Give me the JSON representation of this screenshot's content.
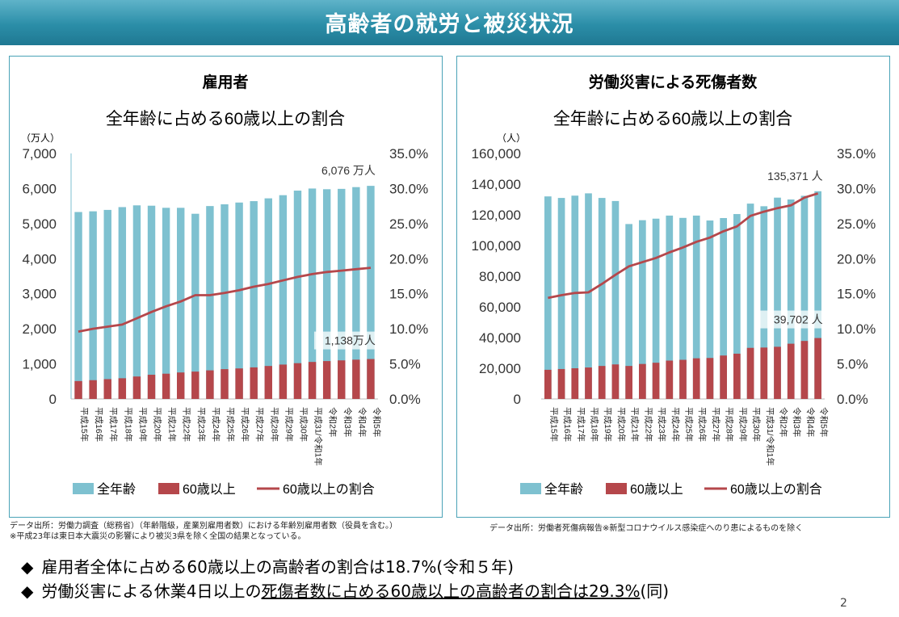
{
  "banner": {
    "title": "高齢者の就労と被災状況"
  },
  "chart_data": [
    {
      "type": "bar+line",
      "title": "雇用者",
      "subtitle": "全年齢に占める60歳以上の割合",
      "y_unit": "（万人）",
      "ylim": [
        0,
        7000
      ],
      "y_ticks": [
        "0",
        "1,000",
        "2,000",
        "3,000",
        "4,000",
        "5,000",
        "6,000",
        "7,000"
      ],
      "y2lim": [
        0,
        35
      ],
      "y2_ticks": [
        "0.0%",
        "5.0%",
        "10.0%",
        "15.0%",
        "20.0%",
        "25.0%",
        "30.0%",
        "35.0%"
      ],
      "categories": [
        "平成15年",
        "平成16年",
        "平成17年",
        "平成18年",
        "平成19年",
        "平成20年",
        "平成21年",
        "平成22年",
        "平成23年",
        "平成24年",
        "平成25年",
        "平成26年",
        "平成27年",
        "平成28年",
        "平成29年",
        "平成30年",
        "平成31/令和1年",
        "令和2年",
        "令和3年",
        "令和4年",
        "令和5年"
      ],
      "series": [
        {
          "name": "全年齢",
          "type": "bar",
          "color": "#7ec1d0",
          "values": [
            5330,
            5350,
            5390,
            5470,
            5520,
            5510,
            5450,
            5450,
            5280,
            5500,
            5550,
            5600,
            5640,
            5720,
            5810,
            5940,
            6000,
            5980,
            5990,
            6040,
            6076
          ]
        },
        {
          "name": "60歳以上",
          "type": "bar",
          "color": "#b5474b",
          "values": [
            510,
            535,
            565,
            590,
            640,
            690,
            720,
            755,
            780,
            815,
            850,
            870,
            900,
            940,
            980,
            1020,
            1055,
            1080,
            1100,
            1120,
            1138
          ]
        },
        {
          "name": "60歳以上の割合",
          "type": "line",
          "axis": "right",
          "color": "#b5474b",
          "values": [
            9.6,
            10.0,
            10.3,
            10.6,
            11.5,
            12.4,
            13.2,
            13.9,
            14.8,
            14.8,
            15.1,
            15.5,
            16.0,
            16.4,
            16.9,
            17.4,
            17.8,
            18.1,
            18.3,
            18.5,
            18.7
          ]
        }
      ],
      "annotations": [
        {
          "text": "6,076 万人",
          "series": 0,
          "index": 20
        },
        {
          "text": "1,138万人",
          "series": 1,
          "index": 20
        }
      ],
      "legend": [
        "全年齢",
        "60歳以上",
        "60歳以上の割合"
      ],
      "legend_position": "bottom",
      "grid": false
    },
    {
      "type": "bar+line",
      "title": "労働災害による死傷者数",
      "subtitle": "全年齢に占める60歳以上の割合",
      "y_unit": "（人）",
      "ylim": [
        0,
        160000
      ],
      "y_ticks": [
        "0",
        "20,000",
        "40,000",
        "60,000",
        "80,000",
        "100,000",
        "120,000",
        "140,000",
        "160,000"
      ],
      "y2lim": [
        0,
        35
      ],
      "y2_ticks": [
        "0.0%",
        "5.0%",
        "10.0%",
        "15.0%",
        "20.0%",
        "25.0%",
        "30.0%",
        "35.0%"
      ],
      "categories": [
        "平成15年",
        "平成16年",
        "平成17年",
        "平成18年",
        "平成19年",
        "平成20年",
        "平成21年",
        "平成22年",
        "平成23年",
        "平成24年",
        "平成25年",
        "平成26年",
        "平成27年",
        "平成28年",
        "平成29年",
        "平成30年",
        "平成31/令和1年",
        "令和2年",
        "令和3年",
        "令和4年",
        "令和5年"
      ],
      "series": [
        {
          "name": "全年齢",
          "type": "bar",
          "color": "#7ec1d0",
          "values": [
            132000,
            131000,
            132500,
            134000,
            131000,
            129000,
            114000,
            116500,
            117500,
            119500,
            118000,
            119500,
            116300,
            117900,
            120500,
            127300,
            125600,
            131200,
            130000,
            132400,
            135371
          ]
        },
        {
          "name": "60歳以上",
          "type": "bar",
          "color": "#b5474b",
          "values": [
            19000,
            19500,
            20000,
            20500,
            21500,
            22500,
            21500,
            22800,
            23600,
            25000,
            25500,
            26500,
            26700,
            28300,
            29500,
            33300,
            33500,
            34000,
            36000,
            37800,
            39702
          ]
        },
        {
          "name": "60歳以上の割合",
          "type": "line",
          "axis": "right",
          "color": "#b5474b",
          "values": [
            14.4,
            14.8,
            15.1,
            15.2,
            16.4,
            17.7,
            18.9,
            19.5,
            20.1,
            20.9,
            21.6,
            22.4,
            23.0,
            23.9,
            24.6,
            26.1,
            26.7,
            27.2,
            27.6,
            28.7,
            29.3
          ]
        }
      ],
      "annotations": [
        {
          "text": "135,371 人",
          "series": 0,
          "index": 20
        },
        {
          "text": "39,702 人",
          "series": 1,
          "index": 20
        }
      ],
      "legend": [
        "全年齢",
        "60歳以上",
        "60歳以上の割合"
      ],
      "legend_position": "bottom",
      "grid": false
    }
  ],
  "notes": {
    "left_source": "データ出所：労働力調査（総務省）（年齢階級，産業別雇用者数）における年齢別雇用者数（役員を含む。）",
    "left_footnote": "※平成23年は東日本大震災の影響により被災3県を除く全国の結果となっている。",
    "right_source": "データ出所：労働者死傷病報告※新型コロナウイルス感染症へのり患によるものを除く"
  },
  "bullets": {
    "mark": "◆",
    "line1": "雇用者全体に占める60歳以上の高齢者の割合は18.7%(令和５年)",
    "line2_a": "労働災害による休業4日以上の",
    "line2_b": "死傷者数に占める60歳以上の高齢者の割合は29.3%",
    "line2_c": "(同)"
  },
  "page_number": "2"
}
